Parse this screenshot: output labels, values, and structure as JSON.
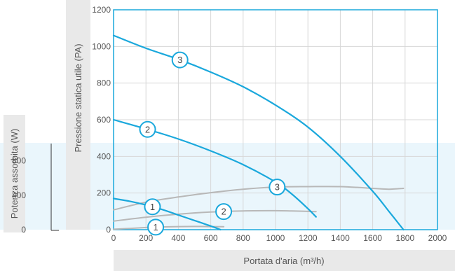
{
  "colors": {
    "pressure_curve": "#1aa8dc",
    "power_curve": "#b8b8b8",
    "marker_stroke": "#1aa8dc",
    "power_band": "#eaf6fc",
    "label_band": "#e9e9e9",
    "frame": "#1aa8dc"
  },
  "chart_data": {
    "type": "line",
    "xlabel": "Portata d'aria (m³/h)",
    "ylabel": "Pressione statica utile (PA)",
    "y2label": "Potenza assorbita (W)",
    "xlim": [
      0,
      2000
    ],
    "ylim": [
      0,
      1200
    ],
    "y2lim": [
      0,
      1000
    ],
    "x_ticks": [
      "0",
      "200",
      "400",
      "600",
      "800",
      "1000",
      "1200",
      "1400",
      "1600",
      "1800",
      "2000"
    ],
    "y_ticks": [
      "0",
      "200",
      "400",
      "600",
      "800",
      "1000",
      "1200"
    ],
    "y2_ticks": [
      "0",
      "400",
      "800"
    ],
    "grid": true,
    "series": [
      {
        "name": "1",
        "kind": "pressure",
        "marker_x": 240,
        "x": [
          0,
          100,
          200,
          300,
          400,
          500,
          600,
          660
        ],
        "y": [
          170,
          155,
          135,
          110,
          80,
          50,
          20,
          0
        ]
      },
      {
        "name": "2",
        "kind": "pressure",
        "marker_x": 210,
        "x": [
          0,
          200,
          400,
          600,
          800,
          1000,
          1100,
          1200,
          1250
        ],
        "y": [
          600,
          550,
          495,
          430,
          355,
          260,
          195,
          115,
          70
        ]
      },
      {
        "name": "3",
        "kind": "pressure",
        "marker_x": 410,
        "x": [
          0,
          200,
          400,
          600,
          800,
          1000,
          1200,
          1400,
          1600,
          1700,
          1790
        ],
        "y": [
          1060,
          990,
          930,
          860,
          780,
          680,
          560,
          400,
          210,
          100,
          0
        ]
      },
      {
        "name": "1",
        "kind": "power",
        "marker_x": 260,
        "x": [
          0,
          100,
          200,
          300,
          400,
          500,
          600,
          680
        ],
        "y": [
          5,
          15,
          25,
          32,
          36,
          37,
          36,
          35
        ]
      },
      {
        "name": "2",
        "kind": "power",
        "marker_x": 680,
        "x": [
          0,
          200,
          400,
          600,
          800,
          1000,
          1100,
          1250
        ],
        "y": [
          100,
          145,
          180,
          205,
          218,
          220,
          217,
          210
        ]
      },
      {
        "name": "3",
        "kind": "power",
        "marker_x": 1010,
        "x": [
          0,
          200,
          400,
          600,
          800,
          1000,
          1200,
          1400,
          1600,
          1700,
          1790
        ],
        "y": [
          230,
          320,
          380,
          430,
          470,
          495,
          500,
          500,
          480,
          470,
          480
        ]
      }
    ]
  }
}
